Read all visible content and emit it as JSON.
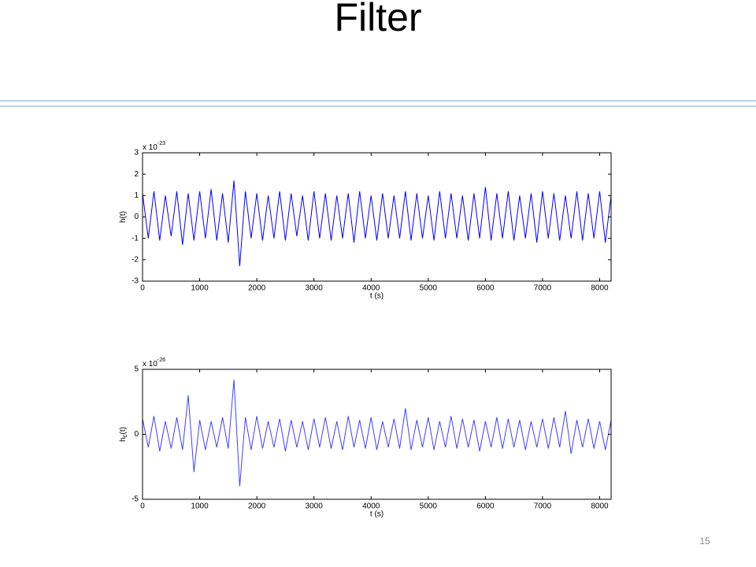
{
  "slide": {
    "title": "Filter",
    "page_number": "15"
  },
  "chart_data": [
    {
      "type": "line",
      "ylabel": "h",
      "ylabel_suffix": "(t)",
      "xlabel": "t (s)",
      "multiplier": "x 10",
      "multiplier_exponent": "-23",
      "xlim": [
        0,
        8200
      ],
      "xticks": [
        0,
        1000,
        2000,
        3000,
        4000,
        5000,
        6000,
        7000,
        8000
      ],
      "ylim": [
        -3,
        3
      ],
      "yticks": [
        -3,
        -2,
        -1,
        0,
        1,
        2,
        3
      ],
      "series": [
        {
          "color": "#0000ff",
          "x": [
            0,
            100,
            200,
            300,
            400,
            500,
            600,
            700,
            800,
            900,
            1000,
            1100,
            1200,
            1300,
            1400,
            1500,
            1600,
            1700,
            1800,
            1900,
            2000,
            2100,
            2200,
            2300,
            2400,
            2500,
            2600,
            2700,
            2800,
            2900,
            3000,
            3100,
            3200,
            3300,
            3400,
            3500,
            3600,
            3700,
            3800,
            3900,
            4000,
            4100,
            4200,
            4300,
            4400,
            4500,
            4600,
            4700,
            4800,
            4900,
            5000,
            5100,
            5200,
            5300,
            5400,
            5500,
            5600,
            5700,
            5800,
            5900,
            6000,
            6100,
            6200,
            6300,
            6400,
            6500,
            6600,
            6700,
            6800,
            6900,
            7000,
            7100,
            7200,
            7300,
            7400,
            7500,
            7600,
            7700,
            7800,
            7900,
            8000,
            8100,
            8200
          ],
          "values": [
            1.1,
            -1.0,
            1.2,
            -1.1,
            1.0,
            -0.9,
            1.2,
            -1.3,
            1.1,
            -1.1,
            1.2,
            -1.0,
            1.3,
            -1.1,
            1.1,
            -1.2,
            1.7,
            -2.3,
            1.2,
            -1.0,
            1.1,
            -1.1,
            1.0,
            -1.0,
            1.2,
            -1.1,
            1.1,
            -0.9,
            1.0,
            -1.1,
            1.2,
            -1.0,
            1.1,
            -1.1,
            1.0,
            -1.0,
            1.1,
            -1.2,
            1.2,
            -1.0,
            1.0,
            -1.1,
            1.1,
            -1.0,
            1.0,
            -1.0,
            1.2,
            -1.1,
            1.1,
            -1.0,
            1.0,
            -1.1,
            1.2,
            -1.0,
            1.1,
            -1.0,
            1.0,
            -1.1,
            1.1,
            -1.0,
            1.4,
            -1.1,
            1.1,
            -1.0,
            1.2,
            -1.1,
            1.0,
            -1.0,
            1.1,
            -1.2,
            1.2,
            -1.0,
            1.1,
            -1.1,
            1.0,
            -1.0,
            1.2,
            -1.1,
            1.1,
            -1.0,
            1.2,
            -1.2,
            1.0
          ]
        }
      ]
    },
    {
      "type": "line",
      "ylabel": "h",
      "ylabel_subscript": "c",
      "ylabel_suffix": "(t)",
      "xlabel": "t (s)",
      "multiplier": "x 10",
      "multiplier_exponent": "-26",
      "xlim": [
        0,
        8200
      ],
      "xticks": [
        0,
        1000,
        2000,
        3000,
        4000,
        5000,
        6000,
        7000,
        8000
      ],
      "ylim": [
        -5,
        5
      ],
      "yticks": [
        -5,
        0,
        5
      ],
      "series": [
        {
          "color": "#4040ff",
          "x": [
            0,
            100,
            200,
            300,
            400,
            500,
            600,
            700,
            800,
            900,
            1000,
            1100,
            1200,
            1300,
            1400,
            1500,
            1600,
            1700,
            1800,
            1900,
            2000,
            2100,
            2200,
            2300,
            2400,
            2500,
            2600,
            2700,
            2800,
            2900,
            3000,
            3100,
            3200,
            3300,
            3400,
            3500,
            3600,
            3700,
            3800,
            3900,
            4000,
            4100,
            4200,
            4300,
            4400,
            4500,
            4600,
            4700,
            4800,
            4900,
            5000,
            5100,
            5200,
            5300,
            5400,
            5500,
            5600,
            5700,
            5800,
            5900,
            6000,
            6100,
            6200,
            6300,
            6400,
            6500,
            6600,
            6700,
            6800,
            6900,
            7000,
            7100,
            7200,
            7300,
            7400,
            7500,
            7600,
            7700,
            7800,
            7900,
            8000,
            8100,
            8200
          ],
          "values": [
            1.2,
            -1.0,
            1.4,
            -1.3,
            1.0,
            -1.1,
            1.3,
            -1.2,
            3.0,
            -2.9,
            1.1,
            -1.2,
            1.0,
            -1.0,
            1.3,
            -1.1,
            4.2,
            -4.0,
            1.3,
            -1.2,
            1.4,
            -1.1,
            1.0,
            -1.0,
            1.2,
            -1.3,
            1.1,
            -1.0,
            1.0,
            -1.2,
            1.2,
            -1.0,
            1.3,
            -1.1,
            1.0,
            -1.2,
            1.4,
            -1.0,
            1.1,
            -1.1,
            1.3,
            -1.2,
            1.0,
            -1.0,
            1.2,
            -1.1,
            2.0,
            -1.2,
            1.1,
            -1.0,
            1.3,
            -1.2,
            1.0,
            -1.0,
            1.4,
            -1.1,
            1.2,
            -1.0,
            1.1,
            -1.3,
            1.0,
            -1.0,
            1.3,
            -1.1,
            1.2,
            -1.0,
            1.1,
            -1.2,
            1.0,
            -1.0,
            1.2,
            -1.1,
            1.3,
            -1.0,
            1.8,
            -1.5,
            1.1,
            -1.0,
            1.2,
            -1.1,
            1.0,
            -1.2,
            1.1
          ]
        }
      ]
    }
  ]
}
